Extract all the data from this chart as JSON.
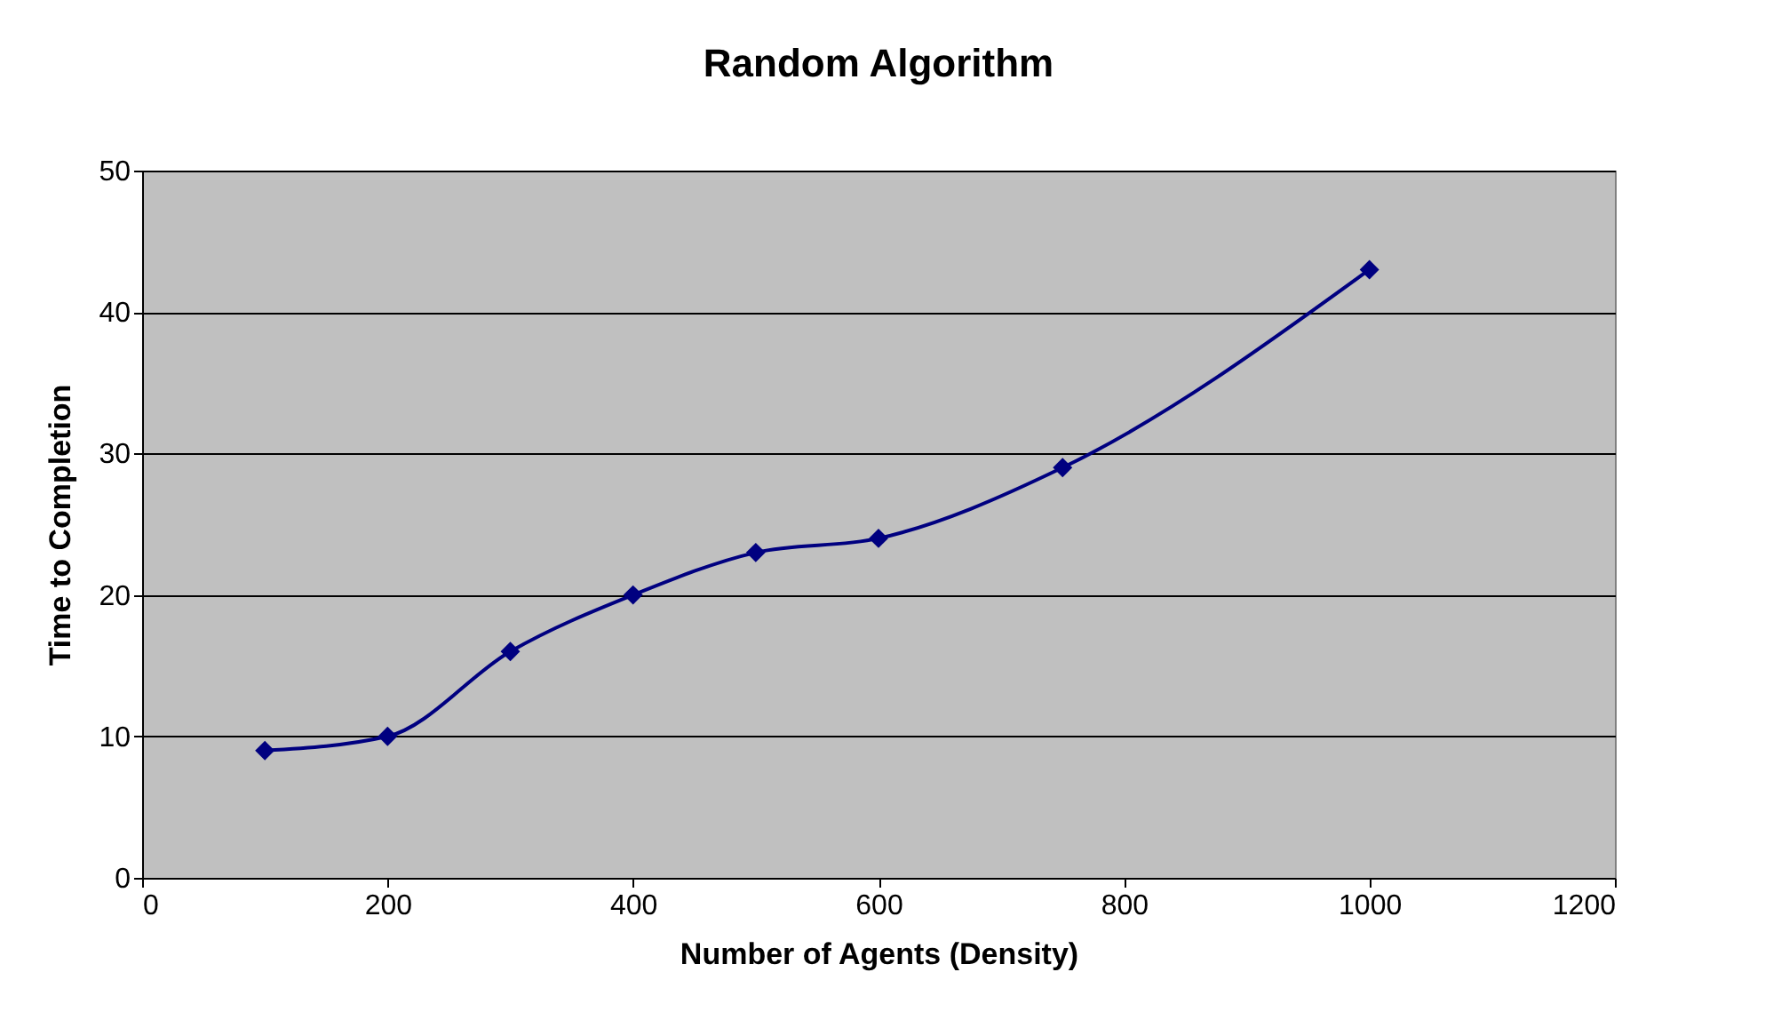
{
  "chart_data": {
    "type": "line",
    "title": "Random Algorithm",
    "xlabel": "Number of Agents (Density)",
    "ylabel": "Time to Completion",
    "x": [
      100,
      200,
      300,
      400,
      500,
      600,
      750,
      1000
    ],
    "series": [
      {
        "color": "#000080",
        "values": [
          9,
          10,
          16,
          20,
          23,
          24,
          29,
          43
        ]
      }
    ],
    "xlim": [
      0,
      1200
    ],
    "xticks": [
      0,
      200,
      400,
      600,
      800,
      1000,
      1200
    ],
    "ylim": [
      0,
      50
    ],
    "yticks": [
      0,
      10,
      20,
      30,
      40,
      50
    ],
    "grid": "y",
    "marker": "diamond",
    "line_style": "solid"
  }
}
